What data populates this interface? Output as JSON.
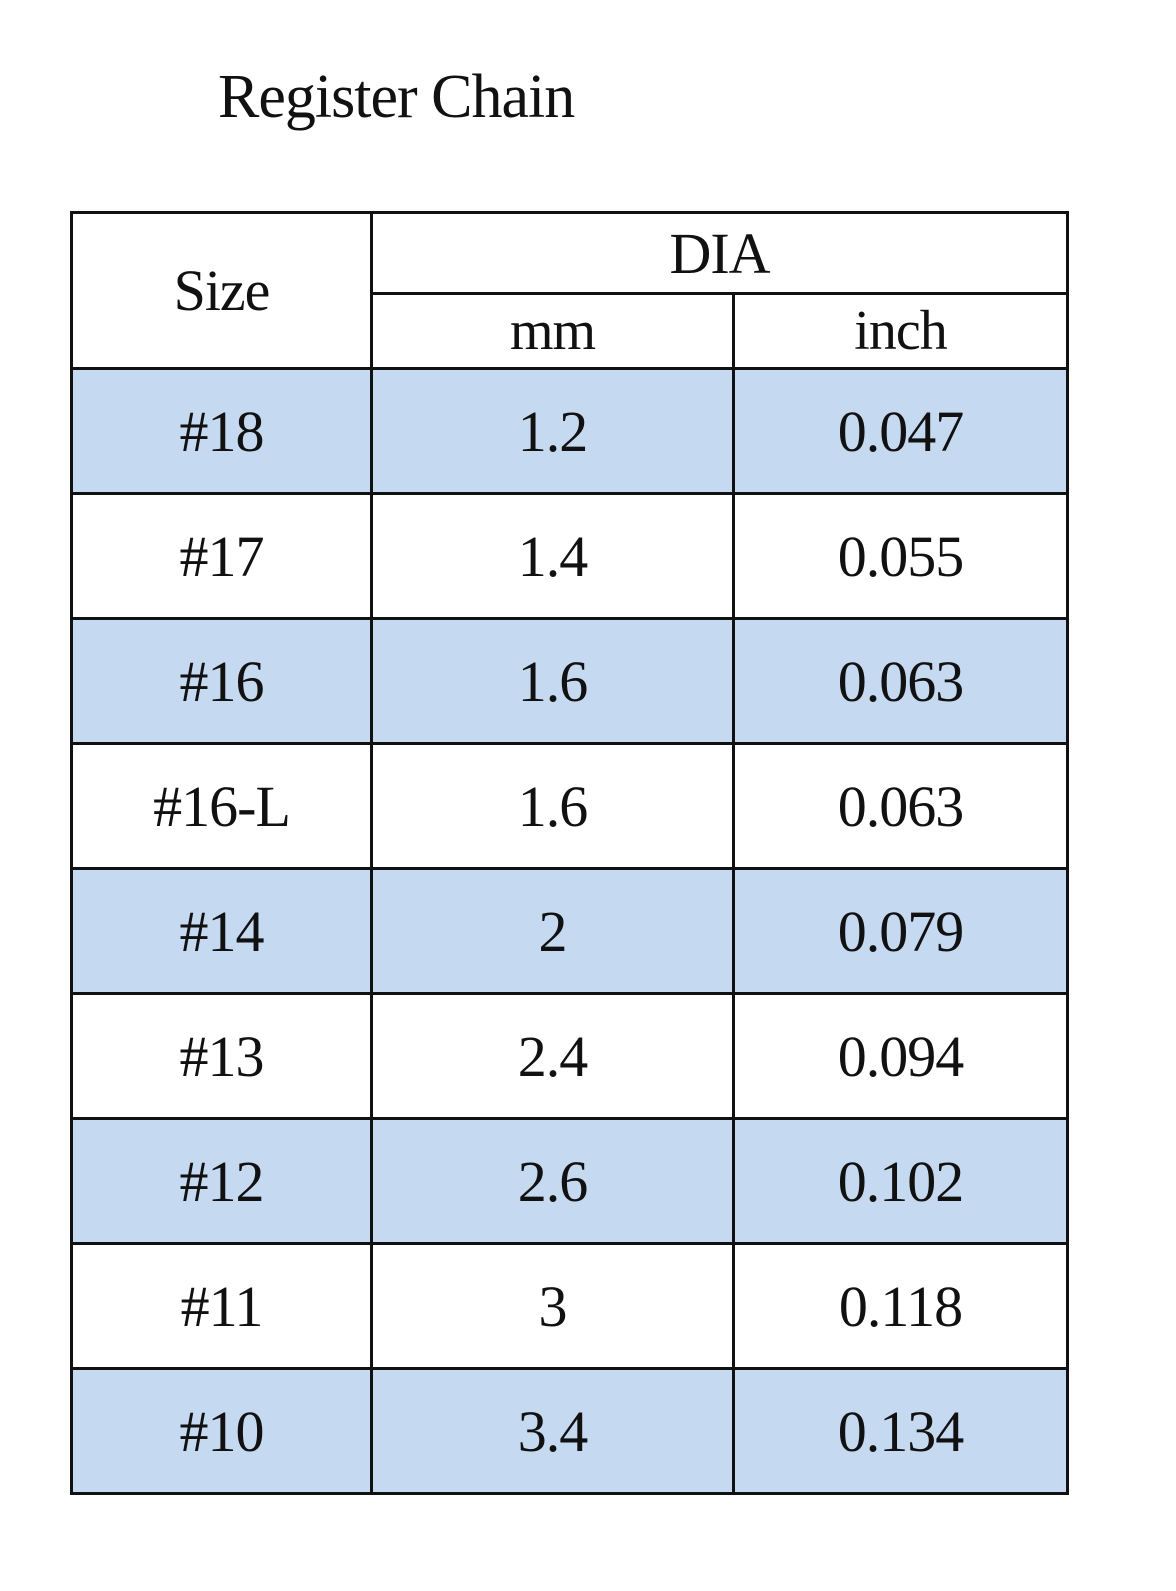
{
  "title": "Register Chain",
  "table": {
    "header": {
      "size": "Size",
      "group": "DIA",
      "columns": [
        "mm",
        "inch"
      ]
    },
    "rows": [
      [
        "#18",
        "1.2",
        "0.047"
      ],
      [
        "#17",
        "1.4",
        "0.055"
      ],
      [
        "#16",
        "1.6",
        "0.063"
      ],
      [
        "#16-L",
        "1.6",
        "0.063"
      ],
      [
        "#14",
        "2",
        "0.079"
      ],
      [
        "#13",
        "2.4",
        "0.094"
      ],
      [
        "#12",
        "2.6",
        "0.102"
      ],
      [
        "#11",
        "3",
        "0.118"
      ],
      [
        "#10",
        "3.4",
        "0.134"
      ]
    ]
  }
}
